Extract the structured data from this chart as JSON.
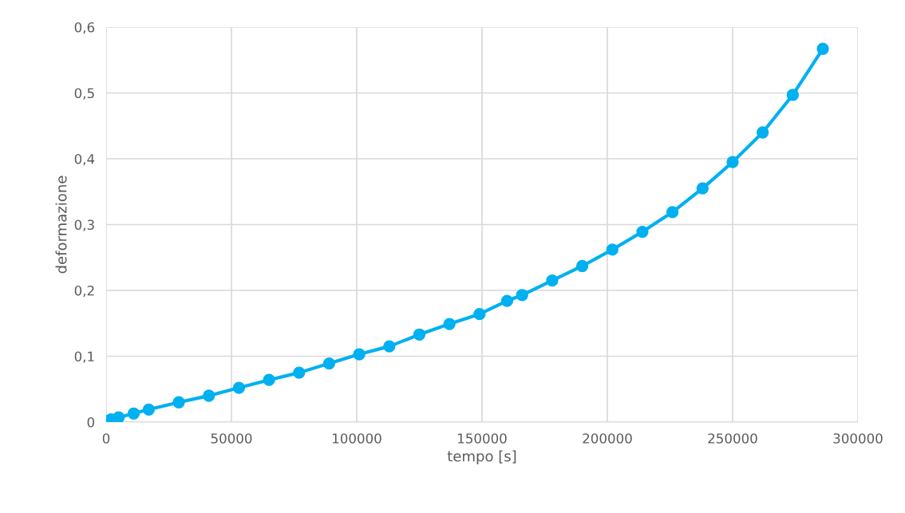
{
  "chart_data": {
    "type": "line",
    "xlabel": "tempo [s]",
    "ylabel": "deformazione",
    "x": [
      0,
      1000,
      2000,
      5000,
      11000,
      17000,
      29000,
      41000,
      53000,
      65000,
      77000,
      89000,
      101000,
      113000,
      125000,
      137000,
      149000,
      160000,
      166000,
      178000,
      190000,
      202000,
      214000,
      226000,
      238000,
      250000,
      262000,
      274000,
      286000
    ],
    "series": [
      {
        "color": "#00b0f0",
        "values": [
          0,
          0.002,
          0.004,
          0.007,
          0.013,
          0.019,
          0.03,
          0.04,
          0.052,
          0.064,
          0.075,
          0.089,
          0.103,
          0.115,
          0.133,
          0.149,
          0.164,
          0.184,
          0.193,
          0.215,
          0.237,
          0.262,
          0.289,
          0.319,
          0.355,
          0.395,
          0.44,
          0.497,
          0.567
        ]
      }
    ],
    "xlim": [
      0,
      300000
    ],
    "xticks": [
      0,
      50000,
      100000,
      150000,
      200000,
      250000,
      300000
    ],
    "ylim": [
      0,
      0.6
    ],
    "yticks": [
      {
        "value": 0,
        "label": "0"
      },
      {
        "value": 0.1,
        "label": "0,1"
      },
      {
        "value": 0.2,
        "label": "0,2"
      },
      {
        "value": 0.3,
        "label": "0,3"
      },
      {
        "value": 0.4,
        "label": "0,4"
      },
      {
        "value": 0.5,
        "label": "0,5"
      },
      {
        "value": 0.6,
        "label": "0,6"
      }
    ],
    "grid": true,
    "marker": "circle",
    "line_style": "solid"
  }
}
